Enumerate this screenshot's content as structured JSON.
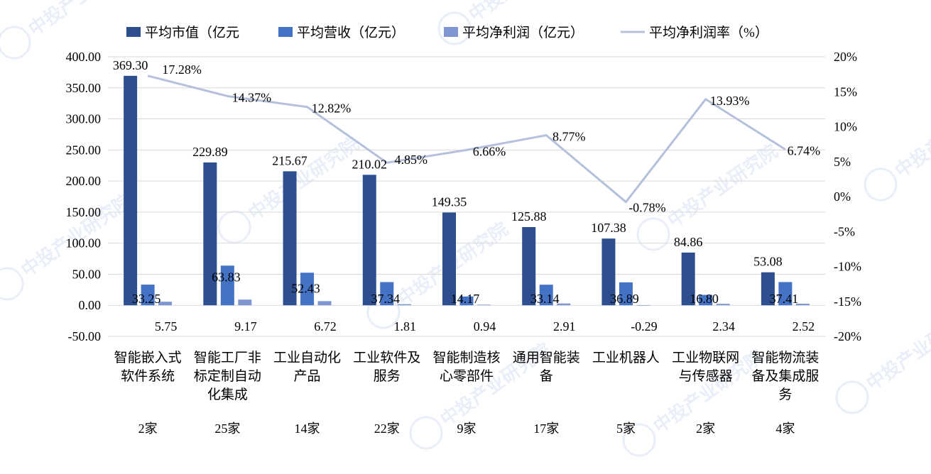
{
  "chart_data": {
    "type": "bar",
    "combo": "bar+line",
    "categories": [
      [
        "智能嵌入式",
        "软件系统"
      ],
      [
        "智能工厂非",
        "标定制自动",
        "化集成"
      ],
      [
        "工业自动化",
        "产品"
      ],
      [
        "工业软件及",
        "服务"
      ],
      [
        "智能制造核",
        "心零部件"
      ],
      [
        "通用智能装",
        "备"
      ],
      [
        "工业机器人"
      ],
      [
        "工业物联网",
        "与传感器"
      ],
      [
        "智能物流装",
        "备及集成服",
        "务"
      ]
    ],
    "company_counts": [
      "2家",
      "25家",
      "14家",
      "22家",
      "9家",
      "17家",
      "5家",
      "2家",
      "4家"
    ],
    "series": [
      {
        "name": "平均市值（亿元",
        "type": "bar",
        "axis": "left",
        "color": "#2E4F8F",
        "values": [
          369.3,
          229.89,
          215.67,
          210.02,
          149.35,
          125.88,
          107.38,
          84.86,
          53.08
        ],
        "labels": [
          "369.30",
          "229.89",
          "215.67",
          "210.02",
          "149.35",
          "125.88",
          "107.38",
          "84.86",
          "53.08"
        ]
      },
      {
        "name": "平均营收（亿元）",
        "type": "bar",
        "axis": "left",
        "color": "#4472C4",
        "values": [
          33.25,
          63.83,
          52.43,
          37.34,
          14.17,
          33.14,
          36.89,
          16.8,
          37.41
        ],
        "labels": [
          "33.25",
          "63.83",
          "52.43",
          "37.34",
          "14.17",
          "33.14",
          "36.89",
          "16.80",
          "37.41"
        ]
      },
      {
        "name": "平均净利润（亿元）",
        "type": "bar",
        "axis": "left",
        "color": "#7F96D2",
        "values": [
          5.75,
          9.17,
          6.72,
          1.81,
          0.94,
          2.91,
          -0.29,
          2.34,
          2.52
        ],
        "labels": [
          "5.75",
          "9.17",
          "6.72",
          "1.81",
          "0.94",
          "2.91",
          "-0.29",
          "2.34",
          "2.52"
        ]
      },
      {
        "name": "平均净利润率（%）",
        "type": "line",
        "axis": "right",
        "color": "#B4C0DC",
        "values": [
          17.28,
          14.37,
          12.82,
          4.85,
          6.66,
          8.77,
          -0.78,
          13.93,
          6.74
        ],
        "labels": [
          "17.28%",
          "14.37%",
          "12.82%",
          "4.85%",
          "6.66%",
          "8.77%",
          "-0.78%",
          "13.93%",
          "6.74%"
        ]
      }
    ],
    "y_left": {
      "ylim": [
        -50,
        400
      ],
      "ticks": [
        "400.00",
        "350.00",
        "300.00",
        "250.00",
        "200.00",
        "150.00",
        "100.00",
        "50.00",
        "0.00",
        "-50.00"
      ],
      "tick_values": [
        400,
        350,
        300,
        250,
        200,
        150,
        100,
        50,
        0,
        -50
      ]
    },
    "y_right": {
      "ylim": [
        -20,
        20
      ],
      "ticks": [
        "20%",
        "15%",
        "10%",
        "5%",
        "0%",
        "-5%",
        "-10%",
        "-15%",
        "-20%"
      ],
      "tick_values": [
        20,
        15,
        10,
        5,
        0,
        -5,
        -10,
        -15,
        -20
      ]
    },
    "grid": true,
    "legend_position": "top",
    "watermark": "中投产业研究院"
  }
}
